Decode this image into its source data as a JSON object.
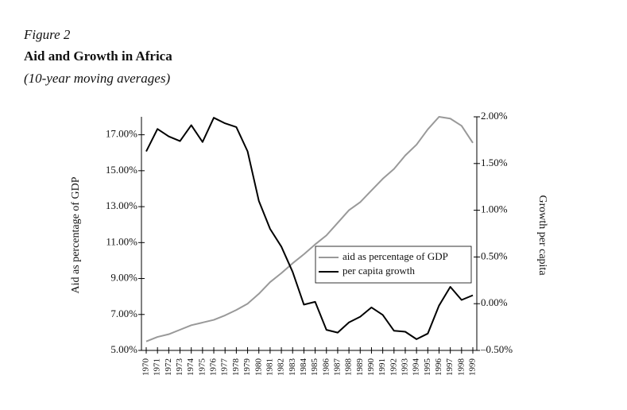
{
  "chart_data": {
    "type": "line",
    "label": "Figure 2",
    "title": "Aid and Growth in Africa",
    "subtitle": "(10-year moving averages)",
    "ylabel": "Aid as percentage of GDP",
    "y2label": "Growth per capita",
    "categories": [
      "1970",
      "1971",
      "1972",
      "1973",
      "1974",
      "1975",
      "1976",
      "1977",
      "1978",
      "1979",
      "1980",
      "1981",
      "1982",
      "1983",
      "1984",
      "1985",
      "1986",
      "1987",
      "1988",
      "1989",
      "1990",
      "1991",
      "1992",
      "1993",
      "1994",
      "1995",
      "1996",
      "1997",
      "1998",
      "1999"
    ],
    "series": [
      {
        "name": "aid as percentage of GDP",
        "color": "#999999",
        "values": [
          5.5,
          5.75,
          5.9,
          6.15,
          6.4,
          6.55,
          6.7,
          6.95,
          7.25,
          7.6,
          8.15,
          8.8,
          9.3,
          9.85,
          10.35,
          10.9,
          11.4,
          12.1,
          12.8,
          13.25,
          13.9,
          14.55,
          15.1,
          15.85,
          16.45,
          17.3,
          18.0,
          17.9,
          17.5,
          16.55
        ]
      },
      {
        "name": "per capita growth",
        "color": "#000000",
        "axis": "y2",
        "values": [
          1.63,
          1.87,
          1.79,
          1.74,
          1.91,
          1.73,
          1.99,
          1.93,
          1.89,
          1.63,
          1.1,
          0.8,
          0.61,
          0.34,
          -0.01,
          0.02,
          -0.28,
          -0.31,
          -0.2,
          -0.14,
          -0.04,
          -0.12,
          -0.29,
          -0.3,
          -0.38,
          -0.32,
          -0.02,
          0.18,
          0.04,
          0.09
        ]
      }
    ],
    "ylim": [
      5,
      18
    ],
    "yticks": [
      {
        "value": 5,
        "label": "5.00%"
      },
      {
        "value": 7,
        "label": "7.00%"
      },
      {
        "value": 9,
        "label": "9.00%"
      },
      {
        "value": 11,
        "label": "11.00%"
      },
      {
        "value": 13,
        "label": "13.00%"
      },
      {
        "value": 15,
        "label": "15.00%"
      },
      {
        "value": 17,
        "label": "17.00%"
      }
    ],
    "y2lim": [
      -0.5,
      2
    ],
    "y2ticks": [
      {
        "value": -0.5,
        "label": "–0.50%"
      },
      {
        "value": 0,
        "label": "0.00%"
      },
      {
        "value": 0.5,
        "label": "0.50%"
      },
      {
        "value": 1,
        "label": "1.00%"
      },
      {
        "value": 1.5,
        "label": "1.50%"
      },
      {
        "value": 2,
        "label": "2.00%"
      }
    ]
  }
}
